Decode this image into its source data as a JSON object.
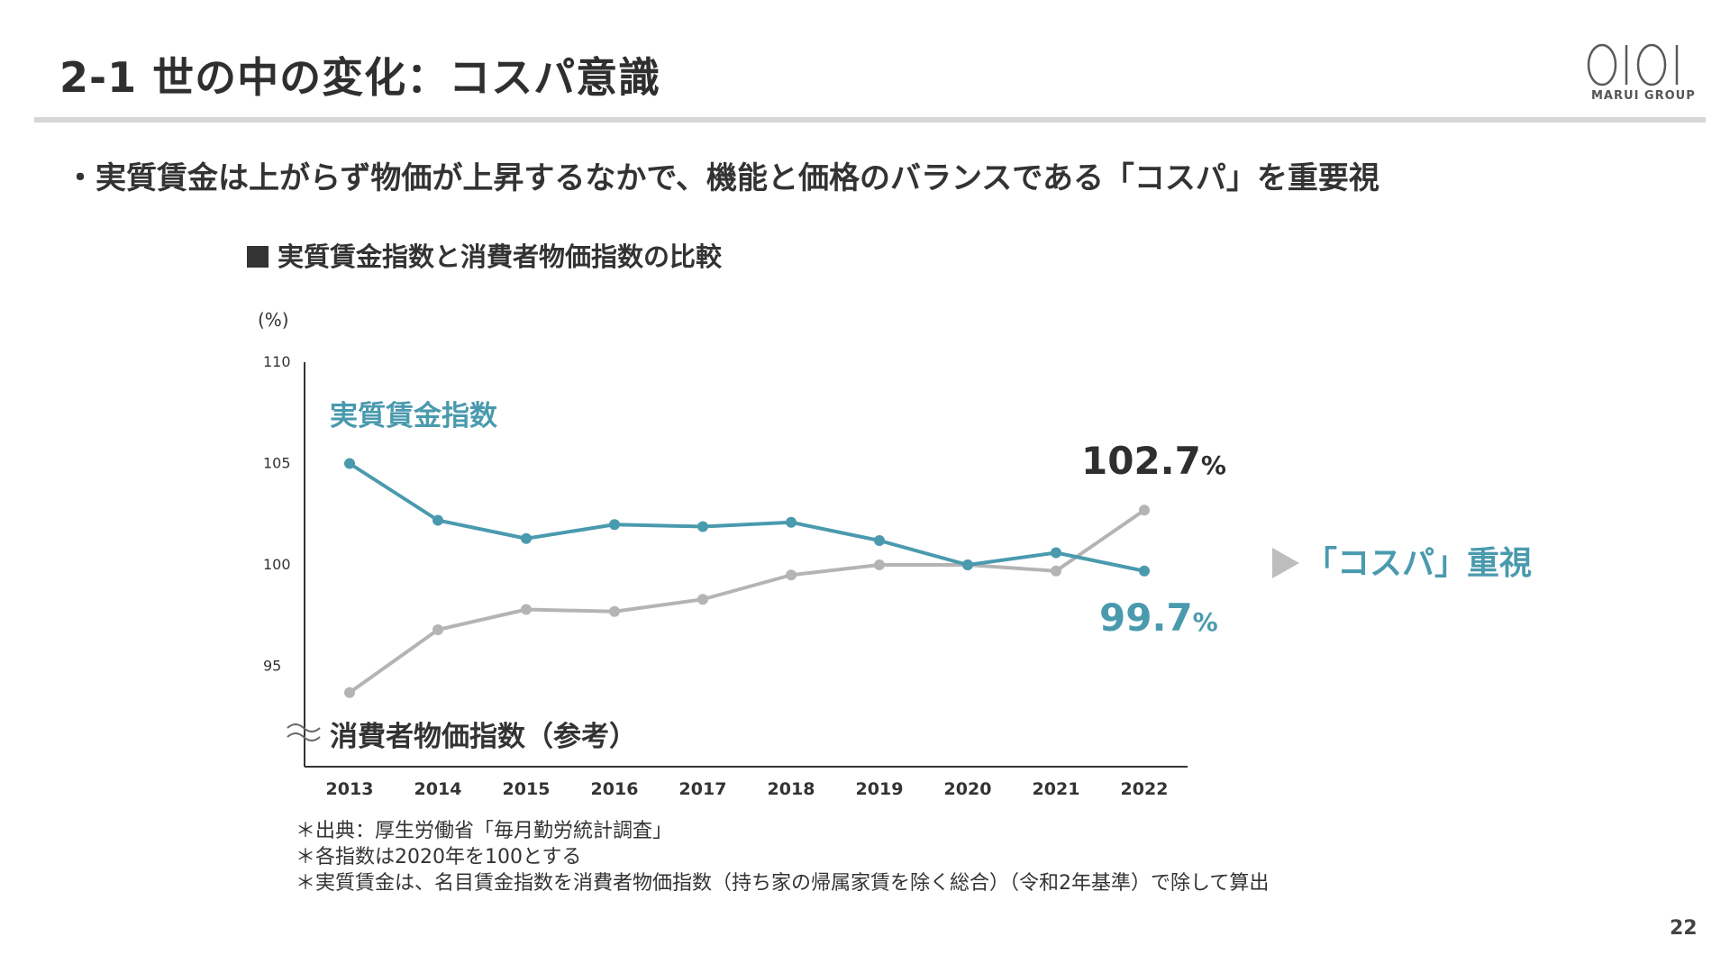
{
  "slide": {
    "title": "2-1 世の中の変化：コスパ意識",
    "subtitle": "・実質賃金は上がらず物価が上昇するなかで、機能と価格のバランスである「コスパ」を重要視",
    "page_number": "22"
  },
  "logo": {
    "mark": "OIOI",
    "text": "MARUI GROUP"
  },
  "chart_heading": "実質賃金指数と消費者物価指数の比較",
  "chart_data": {
    "type": "line",
    "unit_label": "(%)",
    "x": [
      "2013",
      "2014",
      "2015",
      "2016",
      "2017",
      "2018",
      "2019",
      "2020",
      "2021",
      "2022"
    ],
    "ylim": [
      90,
      110
    ],
    "y_ticks": [
      "110",
      "105",
      "100",
      "95"
    ],
    "axis_break": true,
    "grid": false,
    "series": [
      {
        "name": "実質賃金指数",
        "color": "#4a9aae",
        "values": [
          105.0,
          102.2,
          101.3,
          101.99,
          101.89,
          102.1,
          101.2,
          100.0,
          100.6,
          99.7
        ]
      },
      {
        "name": "消費者物価指数（参考）",
        "color": "#b4b4b4",
        "values": [
          93.7,
          96.8,
          97.8,
          97.7,
          98.3,
          99.5,
          100.0,
          100.0,
          99.7,
          102.7
        ]
      }
    ],
    "annotations": {
      "cpi_end_value": "102.7",
      "wage_end_value": "99.7",
      "percent_sign": "%",
      "callout_arrow": "▶",
      "callout_text": "「コスパ」重視"
    }
  },
  "footnotes": [
    "＊出典：厚生労働省「毎月勤労統計調査」",
    "＊各指数は2020年を100とする",
    "＊実質賃金は、名目賃金指数を消費者物価指数（持ち家の帰属家賃を除く総合）（令和2年基準）で除して算出"
  ],
  "colors": {
    "accent": "#4a9aae",
    "cpi": "#b4b4b4",
    "callout_arrow": "#bdbdbd"
  }
}
